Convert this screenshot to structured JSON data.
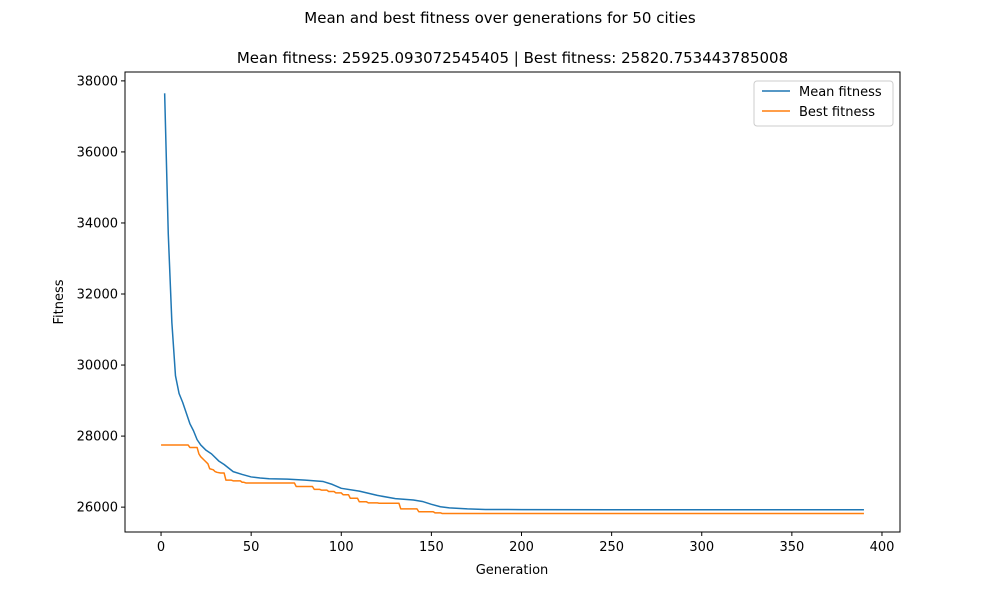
{
  "figure": {
    "suptitle": "Mean and best fitness over generations for 50 cities",
    "title": "Mean fitness: 25925.093072545405 | Best fitness: 25820.753443785008"
  },
  "chart_data": {
    "type": "line",
    "xlabel": "Generation",
    "ylabel": "Fitness",
    "xlim": [
      -20,
      410
    ],
    "ylim": [
      25300,
      38250
    ],
    "xticks": [
      0,
      50,
      100,
      150,
      200,
      250,
      300,
      350,
      400
    ],
    "yticks": [
      26000,
      28000,
      30000,
      32000,
      34000,
      36000,
      38000
    ],
    "grid": false,
    "legend_position": "top-right",
    "series": [
      {
        "name": "Mean fitness",
        "color": "#1f77b4",
        "x": [
          2,
          4,
          6,
          8,
          10,
          12,
          14,
          16,
          18,
          20,
          22,
          25,
          28,
          32,
          35,
          40,
          45,
          50,
          55,
          60,
          70,
          80,
          90,
          95,
          100,
          110,
          120,
          130,
          140,
          145,
          150,
          155,
          160,
          170,
          180,
          200,
          250,
          300,
          350,
          390
        ],
        "values": [
          37650,
          33700,
          31200,
          29700,
          29200,
          28950,
          28650,
          28350,
          28150,
          27900,
          27750,
          27600,
          27500,
          27300,
          27200,
          27000,
          26920,
          26850,
          26820,
          26800,
          26790,
          26760,
          26720,
          26640,
          26530,
          26450,
          26330,
          26240,
          26200,
          26160,
          26080,
          26010,
          25980,
          25950,
          25935,
          25930,
          25927,
          25926,
          25925,
          25925.09
        ]
      },
      {
        "name": "Best fitness",
        "color": "#ff7f0e",
        "x": [
          0,
          15,
          16,
          20,
          21,
          22,
          24,
          26,
          27,
          29,
          30,
          31,
          33,
          35,
          36,
          37,
          38,
          39,
          40,
          44,
          45,
          46,
          47,
          48,
          74,
          75,
          84,
          85,
          88,
          89,
          92,
          93,
          96,
          97,
          100,
          101,
          104,
          105,
          109,
          110,
          114,
          115,
          120,
          121,
          132,
          133,
          142,
          143,
          151,
          152,
          155,
          156,
          390
        ],
        "values": [
          27750,
          27750,
          27680,
          27680,
          27500,
          27420,
          27320,
          27220,
          27080,
          27050,
          27000,
          26980,
          26960,
          26960,
          26760,
          26760,
          26760,
          26760,
          26740,
          26740,
          26700,
          26700,
          26680,
          26680,
          26680,
          26580,
          26580,
          26500,
          26500,
          26480,
          26480,
          26440,
          26440,
          26400,
          26400,
          26350,
          26350,
          26250,
          26250,
          26150,
          26150,
          26120,
          26120,
          26110,
          26110,
          25950,
          25950,
          25870,
          25870,
          25840,
          25840,
          25820.75,
          25820.75
        ]
      }
    ]
  }
}
